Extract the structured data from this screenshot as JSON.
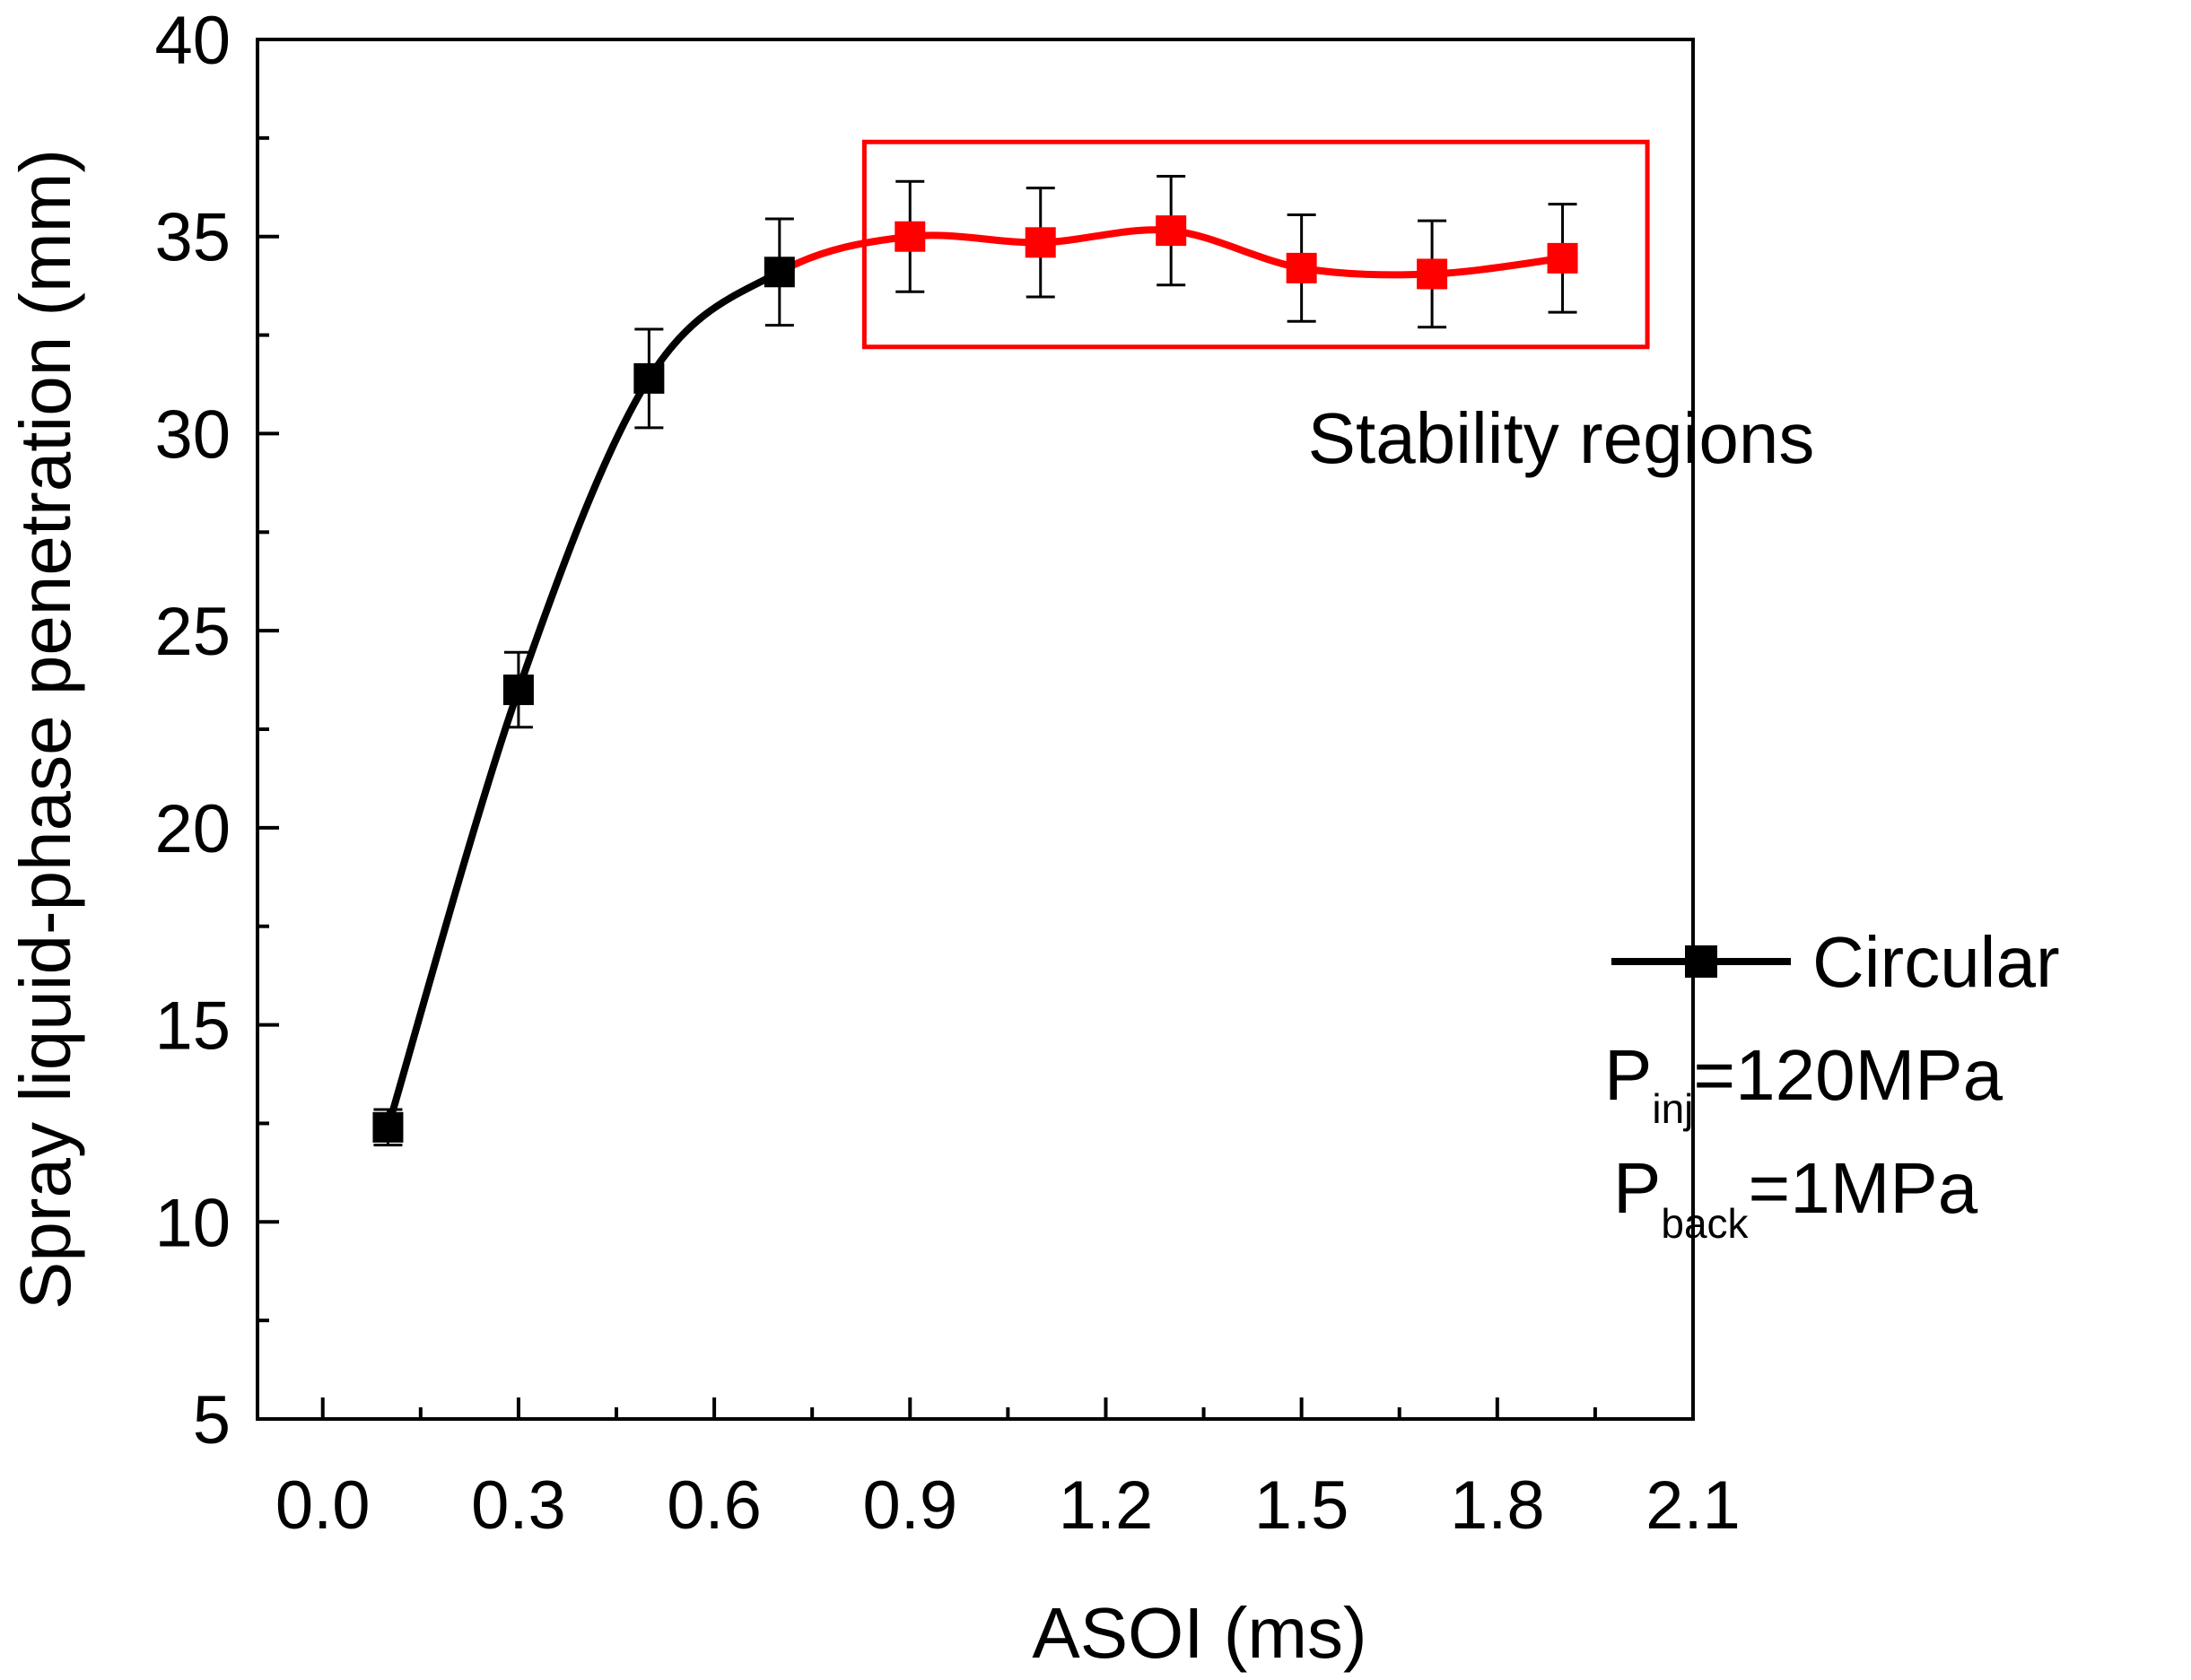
{
  "chart_data": {
    "type": "line",
    "title": "",
    "xlabel": "ASOI (ms)",
    "ylabel": "Spray liquid-phase penetration (mm)",
    "xlim": [
      -0.1,
      2.1
    ],
    "ylim": [
      5,
      40
    ],
    "x_ticks": [
      0.0,
      0.3,
      0.6,
      0.9,
      1.2,
      1.5,
      1.8,
      2.1
    ],
    "x_tick_labels": [
      "0.0",
      "0.3",
      "0.6",
      "0.9",
      "1.2",
      "1.5",
      "1.8",
      "2.1"
    ],
    "y_ticks": [
      5,
      10,
      15,
      20,
      25,
      30,
      35,
      40
    ],
    "y_tick_labels": [
      "5",
      "10",
      "15",
      "20",
      "25",
      "30",
      "35",
      "40"
    ],
    "grid": false,
    "series": [
      {
        "name": "Circular",
        "x": [
          0.1,
          0.3,
          0.5,
          0.7,
          0.9,
          1.1,
          1.3,
          1.5,
          1.7,
          1.9
        ],
        "values": [
          12.4,
          23.5,
          31.4,
          34.1,
          35.0,
          34.85,
          35.15,
          34.2,
          34.05,
          34.45
        ],
        "error": [
          0.45,
          0.95,
          1.25,
          1.35,
          1.4,
          1.38,
          1.38,
          1.35,
          1.35,
          1.37
        ],
        "color": "#000000",
        "highlight_color": "#ff0000",
        "highlight_from_index": 3
      }
    ],
    "legend": {
      "label": "Circular",
      "position": "right"
    },
    "annotations": {
      "region_label": "Stability regions",
      "region_x": [
        0.83,
        2.03
      ],
      "region_y": [
        32.2,
        37.4
      ],
      "region_color": "#ff0000",
      "pinj_main": "P",
      "pinj_sub": "inj",
      "pinj_value": "=120MPa",
      "pback_main": "P",
      "pback_sub": "back",
      "pback_value": "=1MPa"
    }
  }
}
